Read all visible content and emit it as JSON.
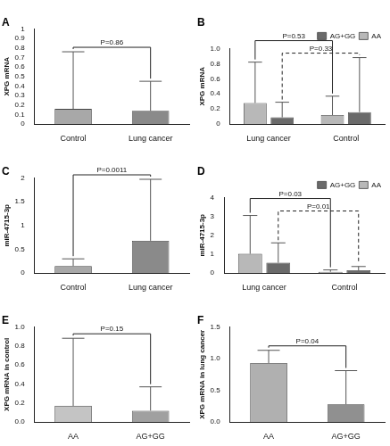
{
  "chart_data": [
    {
      "type": "bar",
      "title": "A",
      "ylabel": "XPG mRNA",
      "categories": [
        "Control",
        "Lung cancer"
      ],
      "values": [
        0.16,
        0.14
      ],
      "errors": [
        0.6,
        0.31
      ],
      "colors": [
        "#a8a8a8",
        "#8a8a8a"
      ],
      "ylim": [
        0,
        1
      ],
      "yticks": [
        0,
        0.1,
        0.2,
        0.3,
        0.4,
        0.5,
        0.6,
        0.7,
        0.8,
        0.9,
        1
      ],
      "grid": false,
      "annotations": [
        {
          "text": "P=0.86",
          "between": [
            "Control",
            "Lung cancer"
          ],
          "line_style": "solid"
        }
      ]
    },
    {
      "type": "bar",
      "title": "B",
      "ylabel": "XPG mRNA",
      "categories": [
        "Lung cancer",
        "Control"
      ],
      "series": [
        {
          "name": "AA",
          "color": "#b8b8b8",
          "values": [
            0.28,
            0.12
          ],
          "errors": [
            0.54,
            0.25
          ]
        },
        {
          "name": "AG+GG",
          "color": "#6a6a6a",
          "values": [
            0.09,
            0.16
          ],
          "errors": [
            0.2,
            0.72
          ]
        }
      ],
      "legend": "top right",
      "ylim": [
        0,
        1
      ],
      "yticks": [
        0,
        0.2,
        0.4,
        0.6,
        0.8,
        {
          "value": 1,
          "label": "1.0"
        }
      ],
      "grid": false,
      "annotations": [
        {
          "text": "P=0.53",
          "series": "AA",
          "between": [
            "Lung cancer",
            "Control"
          ],
          "line_style": "solid"
        },
        {
          "text": "P=0.33",
          "series": "AG+GG",
          "between": [
            "Lung cancer",
            "Control"
          ],
          "line_style": "dashed"
        }
      ]
    },
    {
      "type": "bar",
      "title": "C",
      "ylabel": "miR-4715-3p",
      "categories": [
        "Control",
        "Lung cancer"
      ],
      "values": [
        0.15,
        0.68
      ],
      "errors": [
        0.15,
        1.29
      ],
      "colors": [
        "#a8a8a8",
        "#8a8a8a"
      ],
      "ylim": [
        0,
        2
      ],
      "yticks": [
        0,
        0.5,
        1,
        1.5,
        2
      ],
      "grid": false,
      "annotations": [
        {
          "text": "P=0.0011",
          "between": [
            "Control",
            "Lung cancer"
          ],
          "line_style": "solid"
        }
      ]
    },
    {
      "type": "bar",
      "title": "D",
      "ylabel": "miR-4715-3p",
      "categories": [
        "Lung cancer",
        "Control"
      ],
      "series": [
        {
          "name": "AA",
          "color": "#b8b8b8",
          "values": [
            1.02,
            0.07
          ],
          "errors": [
            2.03,
            0.1
          ]
        },
        {
          "name": "AG+GG",
          "color": "#6a6a6a",
          "values": [
            0.55,
            0.15
          ],
          "errors": [
            1.05,
            0.2
          ]
        }
      ],
      "legend": "top right",
      "ylim": [
        0,
        4
      ],
      "yticks": [
        0,
        1,
        2,
        3,
        4
      ],
      "grid": false,
      "annotations": [
        {
          "text": "P=0.03",
          "series": "AA",
          "between": [
            "Lung cancer",
            "Control"
          ],
          "line_style": "solid"
        },
        {
          "text": "P=0.01",
          "series": "AG+GG",
          "between": [
            "Lung cancer",
            "Control"
          ],
          "line_style": "dashed"
        }
      ]
    },
    {
      "type": "bar",
      "title": "E",
      "ylabel": "XPG mRNA in control",
      "categories": [
        "AA",
        "AG+GG"
      ],
      "values": [
        0.17,
        0.12
      ],
      "errors": [
        0.71,
        0.25
      ],
      "colors": [
        "#c4c4c4",
        "#a0a0a0"
      ],
      "ylim": [
        0,
        1
      ],
      "yticks": [
        {
          "value": 0,
          "label": "0.0"
        },
        0.2,
        0.4,
        0.6,
        0.8,
        {
          "value": 1,
          "label": "1.0"
        }
      ],
      "grid": false,
      "annotations": [
        {
          "text": "P=0.15",
          "between": [
            "AA",
            "AG+GG"
          ],
          "line_style": "solid"
        }
      ]
    },
    {
      "type": "bar",
      "title": "F",
      "ylabel": "XPG mRNA in lung cancer",
      "categories": [
        "AA",
        "AG+GG"
      ],
      "values": [
        0.93,
        0.28
      ],
      "errors": [
        0.2,
        0.53
      ],
      "colors": [
        "#b0b0b0",
        "#909090"
      ],
      "ylim": [
        0,
        1.5
      ],
      "yticks": [
        {
          "value": 0,
          "label": "0.0"
        },
        0.5,
        {
          "value": 1,
          "label": "1.0"
        },
        1.5
      ],
      "grid": false,
      "annotations": [
        {
          "text": "P=0.04",
          "between": [
            "AA",
            "AG+GG"
          ],
          "line_style": "solid"
        }
      ]
    }
  ]
}
